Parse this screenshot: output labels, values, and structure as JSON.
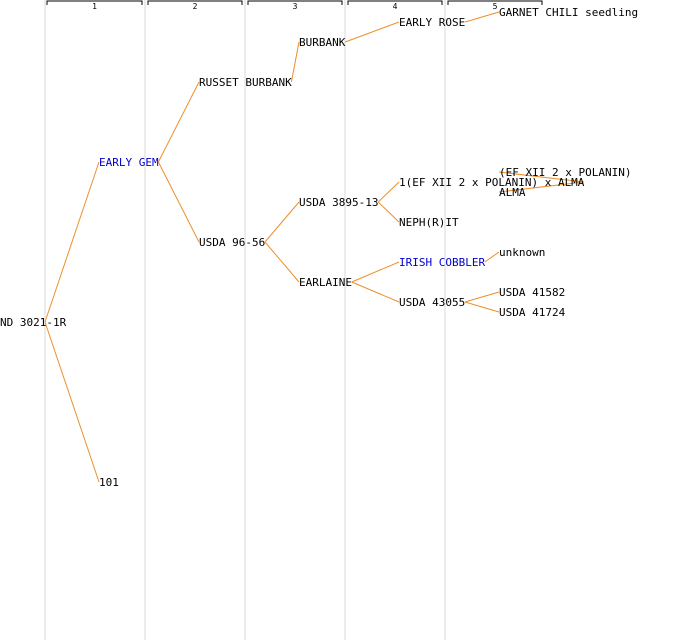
{
  "generations": [
    "1",
    "2",
    "3",
    "4",
    "5"
  ],
  "colors": {
    "edge": "#ee8f2a",
    "link": "#0000cc",
    "text": "#000000",
    "column_line": "#ececec"
  },
  "nodes": {
    "root": {
      "label": "ND 3021-1R",
      "link": false
    },
    "early_gem": {
      "label": "EARLY GEM",
      "link": true
    },
    "n101": {
      "label": "101",
      "link": false
    },
    "russet_burbank": {
      "label": "RUSSET BURBANK",
      "link": false
    },
    "usda_96_56": {
      "label": "USDA 96-56",
      "link": false
    },
    "burbank": {
      "label": "BURBANK",
      "link": false
    },
    "usda_3895_13": {
      "label": "USDA 3895-13",
      "link": false
    },
    "earlaine": {
      "label": "EARLAINE",
      "link": false
    },
    "early_rose": {
      "label": "EARLY ROSE",
      "link": false
    },
    "ef_cross_alma": {
      "label": "1(EF XII 2 x POLANIN) x ALMA",
      "link": false
    },
    "nephrit": {
      "label": "NEPH(R)IT",
      "link": false
    },
    "irish_cobbler": {
      "label": "IRISH COBBLER",
      "link": true
    },
    "usda_43055": {
      "label": "USDA 43055",
      "link": false
    },
    "garnet_chili": {
      "label": "GARNET CHILI seedling",
      "link": false
    },
    "ef_cross": {
      "label": "(EF XII 2 x POLANIN)",
      "link": false
    },
    "alma": {
      "label": "ALMA",
      "link": false
    },
    "unknown": {
      "label": "unknown",
      "link": false
    },
    "usda_41582": {
      "label": "USDA 41582",
      "link": false
    },
    "usda_41724": {
      "label": "USDA 41724",
      "link": false
    }
  },
  "edges": [
    [
      "root",
      "early_gem"
    ],
    [
      "root",
      "n101"
    ],
    [
      "early_gem",
      "russet_burbank"
    ],
    [
      "early_gem",
      "usda_96_56"
    ],
    [
      "russet_burbank",
      "burbank"
    ],
    [
      "usda_96_56",
      "usda_3895_13"
    ],
    [
      "usda_96_56",
      "earlaine"
    ],
    [
      "burbank",
      "early_rose"
    ],
    [
      "usda_3895_13",
      "ef_cross_alma"
    ],
    [
      "usda_3895_13",
      "nephrit"
    ],
    [
      "earlaine",
      "irish_cobbler"
    ],
    [
      "earlaine",
      "usda_43055"
    ],
    [
      "early_rose",
      "garnet_chili"
    ],
    [
      "ef_cross_alma",
      "ef_cross"
    ],
    [
      "ef_cross_alma",
      "alma"
    ],
    [
      "irish_cobbler",
      "unknown"
    ],
    [
      "usda_43055",
      "usda_41582"
    ],
    [
      "usda_43055",
      "usda_41724"
    ]
  ]
}
